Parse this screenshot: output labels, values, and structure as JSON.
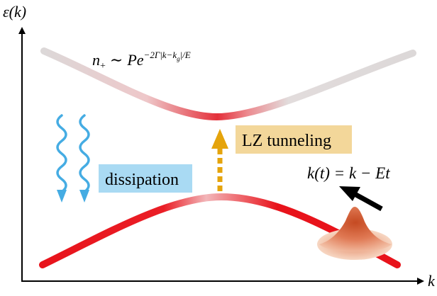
{
  "axes": {
    "y_label": "ε(k)",
    "x_label": "k"
  },
  "upper_band_formula": {
    "lhs": "n",
    "lhs_sub": "+",
    "relation": "∼",
    "base": "Pe",
    "exponent_main": "−2Γ|k−k",
    "exponent_sub": "g",
    "exponent_tail": "|/E"
  },
  "lz_label": "LZ tunneling",
  "dissipation_label": "dissipation",
  "momentum_formula": "k(t) = k − Et",
  "colors": {
    "axis": "#000000",
    "band_red": "#e8131b",
    "upper_band_grey": "#d9d4d4",
    "lz_arrow": "#e5a40c",
    "lz_box": "#f3d79a",
    "dissipation_box": "#a9daf3",
    "wavy_arrows": "#45ace3",
    "wavepacket": "#d9704a"
  },
  "icons": [
    "wavy-down-arrow-icon",
    "dashed-up-arrow-icon",
    "black-arrow-icon",
    "wavepacket-icon"
  ]
}
